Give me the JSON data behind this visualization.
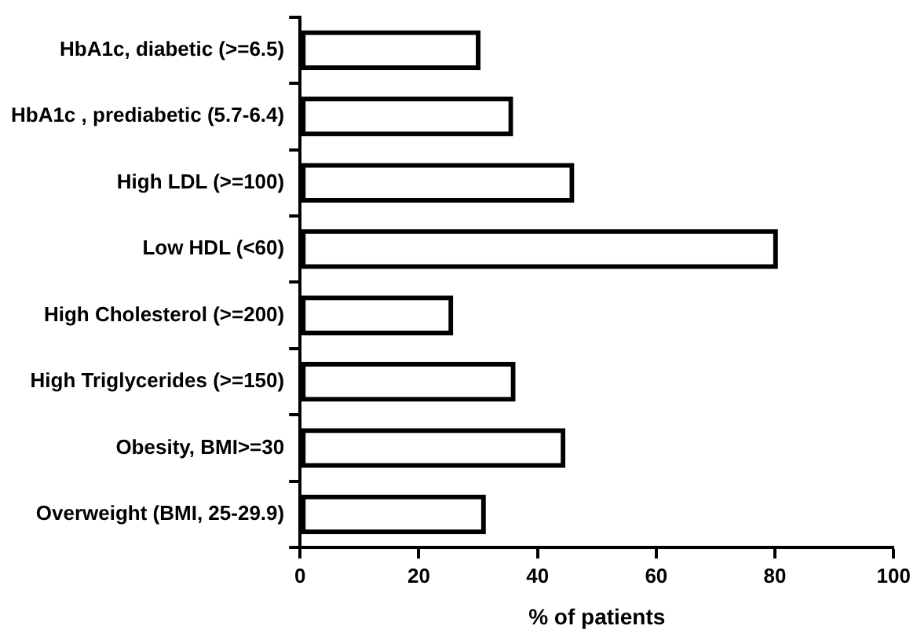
{
  "chart_data": {
    "type": "bar",
    "orientation": "horizontal",
    "xlabel": "% of patients",
    "categories": [
      "HbA1c, diabetic (>=6.5)",
      "HbA1c , prediabetic (5.7-6.4)",
      "High LDL (>=100)",
      "Low HDL (<60)",
      "High Cholesterol (>=200)",
      "High Triglycerides (>=150)",
      "Obesity, BMI>=30",
      "Overweight (BMI, 25-29.9)"
    ],
    "values": [
      30.4,
      35.9,
      46.2,
      80.5,
      25.8,
      36.3,
      44.7,
      31.3
    ],
    "color": "#000000",
    "xlim": [
      0,
      100
    ],
    "xticks": [
      0,
      20,
      40,
      60,
      80,
      100
    ],
    "grid": false
  }
}
